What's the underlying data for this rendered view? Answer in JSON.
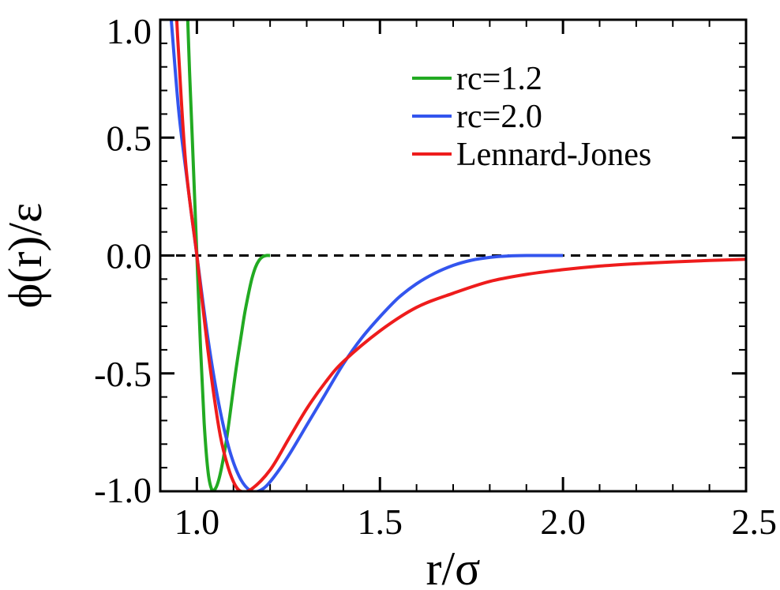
{
  "chart_data": {
    "type": "line",
    "xlabel": "r/σ",
    "ylabel": "ϕ(r)/ε",
    "xlim": [
      0.9,
      2.5
    ],
    "ylim": [
      -1.0,
      1.0
    ],
    "x_ticks": [
      1.0,
      1.5,
      2.0,
      2.5
    ],
    "x_tick_labels": [
      "1.0",
      "1.5",
      "2.0",
      "2.5"
    ],
    "y_ticks": [
      -1.0,
      -0.5,
      0.0,
      0.5,
      1.0
    ],
    "y_tick_labels": [
      "-1.0",
      "-0.5",
      "0.0",
      "0.5",
      "1.0"
    ],
    "x_minor_step": 0.1,
    "y_minor_step": 0.1,
    "grid": false,
    "legend_position": "top-right",
    "reference_line": {
      "y": 0.0,
      "style": "dashed",
      "color": "#000000"
    },
    "series": [
      {
        "name": "rc=1.2",
        "color": "#22aa22",
        "x": [
          0.975,
          0.98,
          0.99,
          1.0,
          1.01,
          1.02,
          1.03,
          1.04,
          1.05,
          1.06,
          1.07,
          1.08,
          1.09,
          1.1,
          1.11,
          1.12,
          1.13,
          1.14,
          1.15,
          1.16,
          1.17,
          1.18,
          1.19,
          1.2
        ],
        "y": [
          1.0,
          0.78,
          0.4,
          0.0,
          -0.39,
          -0.71,
          -0.91,
          -0.99,
          -0.99,
          -0.95,
          -0.88,
          -0.79,
          -0.68,
          -0.56,
          -0.45,
          -0.35,
          -0.25,
          -0.17,
          -0.1,
          -0.05,
          -0.02,
          -0.005,
          0.0,
          0.0
        ]
      },
      {
        "name": "rc=2.0",
        "color": "#3355ee",
        "x": [
          0.93,
          0.95,
          0.97,
          1.0,
          1.03,
          1.06,
          1.09,
          1.12,
          1.15,
          1.18,
          1.21,
          1.25,
          1.3,
          1.35,
          1.4,
          1.45,
          1.5,
          1.55,
          1.6,
          1.65,
          1.7,
          1.75,
          1.8,
          1.85,
          1.9,
          1.95,
          2.0
        ],
        "y": [
          1.0,
          0.62,
          0.36,
          0.0,
          -0.35,
          -0.63,
          -0.83,
          -0.95,
          -1.0,
          -0.99,
          -0.94,
          -0.85,
          -0.72,
          -0.59,
          -0.46,
          -0.35,
          -0.26,
          -0.18,
          -0.12,
          -0.075,
          -0.042,
          -0.02,
          -0.008,
          -0.002,
          0.0,
          0.0,
          0.0
        ]
      },
      {
        "name": "Lennard-Jones",
        "color": "#ee1c1c",
        "x": [
          0.945,
          0.95,
          0.97,
          1.0,
          1.03,
          1.06,
          1.08,
          1.1,
          1.12,
          1.15,
          1.2,
          1.25,
          1.3,
          1.35,
          1.4,
          1.5,
          1.6,
          1.7,
          1.8,
          1.9,
          2.0,
          2.1,
          2.2,
          2.3,
          2.4,
          2.5
        ],
        "y": [
          1.0,
          0.86,
          0.38,
          0.0,
          -0.4,
          -0.73,
          -0.87,
          -0.96,
          -1.0,
          -0.99,
          -0.91,
          -0.78,
          -0.65,
          -0.54,
          -0.45,
          -0.32,
          -0.22,
          -0.16,
          -0.11,
          -0.08,
          -0.06,
          -0.045,
          -0.035,
          -0.027,
          -0.021,
          -0.016
        ]
      }
    ]
  }
}
